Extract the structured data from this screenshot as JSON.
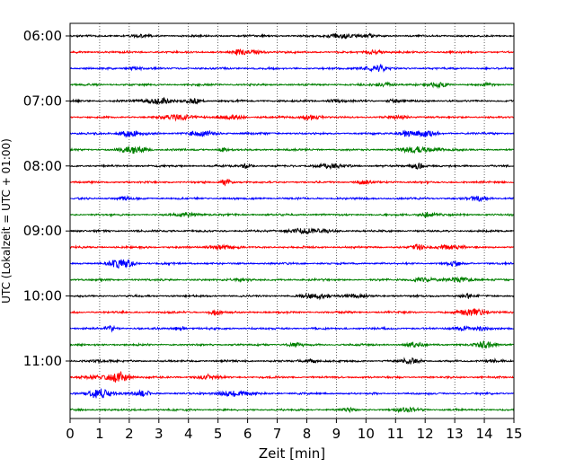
{
  "chart_data": {
    "type": "line",
    "title": "",
    "xlabel": "Zeit  [min]",
    "ylabel": "UTC (Lokalzeit = UTC + 01:00)",
    "xlim": [
      0,
      15
    ],
    "x_ticks": [
      "0",
      "1",
      "2",
      "3",
      "4",
      "5",
      "6",
      "7",
      "8",
      "9",
      "10",
      "11",
      "12",
      "13",
      "14",
      "15"
    ],
    "y_ticks": [
      "06:00",
      "07:00",
      "08:00",
      "09:00",
      "10:00",
      "11:00"
    ],
    "grid": "vertical dotted lines at each minute",
    "legend": "none",
    "trace_minutes": 15,
    "series": [
      {
        "start": "06:00",
        "color": "#000000"
      },
      {
        "start": "06:15",
        "color": "#ff0000"
      },
      {
        "start": "06:30",
        "color": "#0000ff"
      },
      {
        "start": "06:45",
        "color": "#008000"
      },
      {
        "start": "07:00",
        "color": "#000000"
      },
      {
        "start": "07:15",
        "color": "#ff0000"
      },
      {
        "start": "07:30",
        "color": "#0000ff"
      },
      {
        "start": "07:45",
        "color": "#008000"
      },
      {
        "start": "08:00",
        "color": "#000000"
      },
      {
        "start": "08:15",
        "color": "#ff0000"
      },
      {
        "start": "08:30",
        "color": "#0000ff"
      },
      {
        "start": "08:45",
        "color": "#008000"
      },
      {
        "start": "09:00",
        "color": "#000000"
      },
      {
        "start": "09:15",
        "color": "#ff0000"
      },
      {
        "start": "09:30",
        "color": "#0000ff"
      },
      {
        "start": "09:45",
        "color": "#008000"
      },
      {
        "start": "10:00",
        "color": "#000000"
      },
      {
        "start": "10:15",
        "color": "#ff0000"
      },
      {
        "start": "10:30",
        "color": "#0000ff"
      },
      {
        "start": "10:45",
        "color": "#008000"
      },
      {
        "start": "11:00",
        "color": "#000000"
      },
      {
        "start": "11:15",
        "color": "#ff0000"
      },
      {
        "start": "11:30",
        "color": "#0000ff"
      },
      {
        "start": "11:45",
        "color": "#008000"
      }
    ]
  }
}
